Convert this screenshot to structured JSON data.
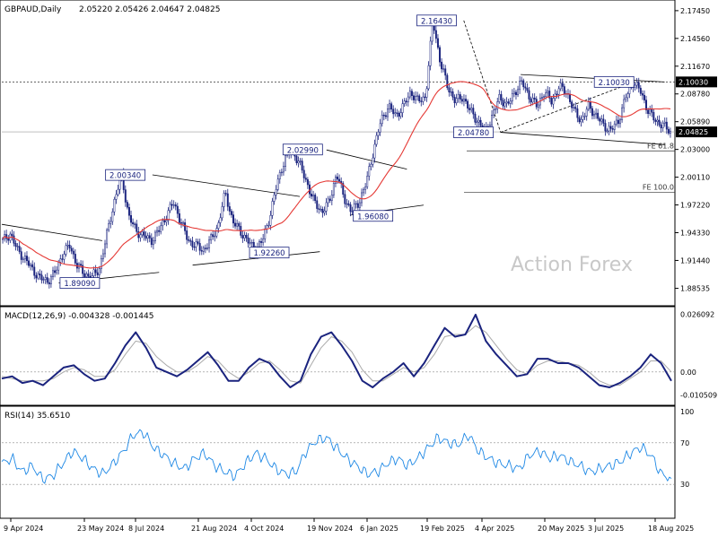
{
  "chart_data": [
    {
      "type": "candlestick",
      "symbol_label": "GBPAUD,Daily",
      "ohlc_readout": [
        "2.05220",
        "2.05426",
        "2.04647",
        "2.04825"
      ],
      "watermark": "Action Forex",
      "ylim": [
        1.87,
        2.18
      ],
      "y_ticks": [
        "2.17450",
        "2.14560",
        "2.11670",
        "2.08780",
        "2.05890",
        "2.03000",
        "2.00110",
        "1.97220",
        "1.94330",
        "1.91440",
        "1.88535"
      ],
      "y_tick_values": [
        2.1745,
        2.1456,
        2.1167,
        2.0878,
        2.0589,
        2.03,
        2.0011,
        1.9722,
        1.9433,
        1.9144,
        1.88535
      ],
      "x_ticks": [
        "9 Apr 2024",
        "23 May 2024",
        "8 Jul 2024",
        "21 Aug 2024",
        "4 Oct 2024",
        "19 Nov 2024",
        "6 Jan 2025",
        "19 Feb 2025",
        "4 Apr 2025",
        "20 May 2025",
        "3 Jul 2025",
        "18 Aug 2025"
      ],
      "current_price_label": "2.04825",
      "current_price": 2.04825,
      "level_line_label": "2.10030",
      "level_line": 2.1003,
      "price_annotations": [
        {
          "text": "1.89090",
          "value": 1.8909
        },
        {
          "text": "2.00340",
          "value": 2.0034
        },
        {
          "text": "1.92260",
          "value": 1.9226
        },
        {
          "text": "2.02990",
          "value": 2.0299
        },
        {
          "text": "1.96080",
          "value": 1.9608
        },
        {
          "text": "2.16430",
          "value": 2.1643
        },
        {
          "text": "2.04780",
          "value": 2.0478
        },
        {
          "text": "2.10030",
          "value": 2.1003
        }
      ],
      "fibonacci_levels": [
        {
          "label": "FE 61.8",
          "value": 2.0285
        },
        {
          "label": "FE 100.0",
          "value": 1.9855
        }
      ],
      "close_path": [
        1.935,
        1.942,
        1.925,
        1.916,
        1.905,
        1.896,
        1.893,
        1.901,
        1.92,
        1.93,
        1.91,
        1.9,
        1.897,
        1.905,
        1.94,
        1.975,
        2.0034,
        1.96,
        1.945,
        1.94,
        1.935,
        1.945,
        1.96,
        1.975,
        1.955,
        1.935,
        1.93,
        1.925,
        1.935,
        1.95,
        1.985,
        1.955,
        1.945,
        1.935,
        1.925,
        1.935,
        1.96,
        1.995,
        2.02,
        2.0299,
        2.015,
        1.995,
        1.975,
        1.965,
        1.975,
        2.005,
        1.98,
        1.965,
        1.975,
        1.995,
        2.03,
        2.06,
        2.075,
        2.065,
        2.075,
        2.09,
        2.08,
        2.085,
        2.1643,
        2.12,
        2.095,
        2.08,
        2.085,
        2.07,
        2.06,
        2.0478,
        2.065,
        2.085,
        2.075,
        2.09,
        2.1,
        2.085,
        2.075,
        2.09,
        2.08,
        2.095,
        2.09,
        2.07,
        2.06,
        2.075,
        2.065,
        2.055,
        2.05,
        2.06,
        2.085,
        2.1,
        2.09,
        2.07,
        2.06,
        2.055,
        2.04825
      ],
      "sub_charts": [
        {
          "label": "MACD(12,26,9) -0.004328 -0.001445",
          "y_ticks": [
            "0.026092",
            "0.00",
            "-0.010509"
          ],
          "y_tick_values": [
            0.026092,
            0.0,
            -0.010509
          ],
          "ylim": [
            -0.0135,
            0.028
          ],
          "macd_path": [
            -0.003,
            -0.002,
            -0.005,
            -0.004,
            -0.006,
            -0.002,
            0.002,
            0.003,
            -0.001,
            -0.004,
            -0.003,
            0.004,
            0.012,
            0.018,
            0.011,
            0.002,
            0.0,
            -0.002,
            0.001,
            0.005,
            0.009,
            0.003,
            -0.004,
            -0.004,
            0.002,
            0.006,
            0.004,
            -0.002,
            -0.007,
            -0.004,
            0.008,
            0.016,
            0.018,
            0.012,
            0.005,
            -0.004,
            -0.007,
            -0.003,
            0.0,
            0.004,
            -0.002,
            0.004,
            0.012,
            0.02,
            0.016,
            0.017,
            0.026,
            0.014,
            0.008,
            0.003,
            -0.002,
            -0.001,
            0.006,
            0.006,
            0.004,
            0.004,
            0.002,
            -0.002,
            -0.006,
            -0.007,
            -0.005,
            -0.002,
            0.002,
            0.008,
            0.004,
            -0.004
          ],
          "signal_path": [
            -0.002,
            -0.003,
            -0.004,
            -0.004,
            -0.004,
            -0.003,
            0.0,
            0.002,
            0.001,
            -0.002,
            -0.002,
            0.001,
            0.008,
            0.014,
            0.013,
            0.007,
            0.003,
            0.0,
            0.0,
            0.003,
            0.007,
            0.005,
            0.0,
            -0.003,
            0.0,
            0.004,
            0.005,
            0.001,
            -0.004,
            -0.005,
            0.003,
            0.011,
            0.016,
            0.014,
            0.009,
            0.001,
            -0.004,
            -0.004,
            -0.001,
            0.002,
            0.0,
            0.002,
            0.008,
            0.016,
            0.017,
            0.017,
            0.021,
            0.018,
            0.012,
            0.006,
            0.001,
            -0.001,
            0.003,
            0.005,
            0.005,
            0.004,
            0.003,
            0.0,
            -0.004,
            -0.006,
            -0.006,
            -0.003,
            0.0,
            0.005,
            0.005,
            0.0
          ]
        },
        {
          "label": "RSI(14) 35.6510",
          "y_ticks": [
            "100",
            "70",
            "30"
          ],
          "y_tick_values": [
            100,
            70,
            30
          ],
          "ylim": [
            0,
            100
          ],
          "rsi_path": [
            50,
            55,
            42,
            48,
            35,
            38,
            50,
            62,
            55,
            45,
            40,
            50,
            62,
            78,
            80,
            65,
            58,
            50,
            45,
            55,
            60,
            48,
            42,
            38,
            50,
            60,
            55,
            45,
            40,
            42,
            62,
            72,
            75,
            65,
            55,
            48,
            40,
            42,
            50,
            55,
            48,
            55,
            65,
            75,
            70,
            68,
            78,
            62,
            55,
            50,
            48,
            45,
            58,
            62,
            55,
            58,
            52,
            48,
            42,
            45,
            48,
            52,
            60,
            66,
            58,
            40,
            35.651
          ]
        }
      ]
    }
  ]
}
